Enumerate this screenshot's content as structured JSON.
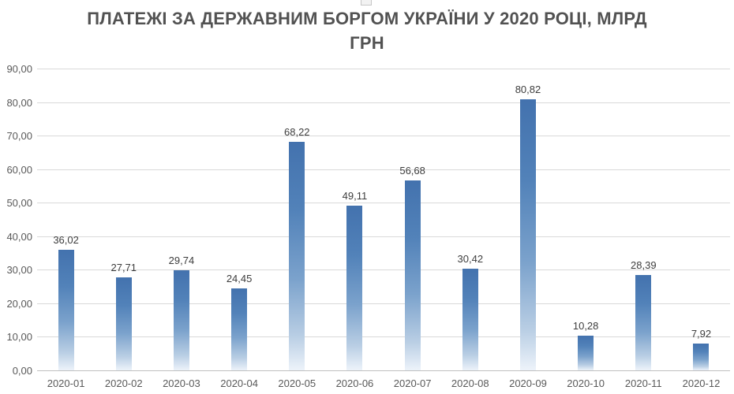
{
  "chart_data": {
    "type": "bar",
    "title": "ПЛАТЕЖІ ЗА ДЕРЖАВНИМ БОРГОМ УКРАЇНИ У 2020 РОЦІ, МЛРД ГРН",
    "title_line1": "ПЛАТЕЖІ ЗА ДЕРЖАВНИМ БОРГОМ УКРАЇНИ У 2020 РОЦІ, МЛРД",
    "title_line2": "ГРН",
    "xlabel": "",
    "ylabel": "",
    "categories": [
      "2020-01",
      "2020-02",
      "2020-03",
      "2020-04",
      "2020-05",
      "2020-06",
      "2020-07",
      "2020-08",
      "2020-09",
      "2020-10",
      "2020-11",
      "2020-12"
    ],
    "values": [
      36.02,
      27.71,
      29.74,
      24.45,
      68.22,
      49.11,
      56.68,
      30.42,
      80.82,
      10.28,
      28.39,
      7.92
    ],
    "value_labels": [
      "36,02",
      "27,71",
      "29,74",
      "24,45",
      "68,22",
      "49,11",
      "56,68",
      "30,42",
      "80,82",
      "10,28",
      "28,39",
      "7,92"
    ],
    "ylim": [
      0,
      90
    ],
    "ytick_step": 10,
    "ytick_labels": [
      "0,00",
      "10,00",
      "20,00",
      "30,00",
      "40,00",
      "50,00",
      "60,00",
      "70,00",
      "80,00",
      "90,00"
    ],
    "grid": true,
    "legend": "none",
    "colors": {
      "bar_gradient_top": "#4372AE",
      "bar_gradient_bottom": "#EDF3FA",
      "gridline": "#D9D9D9",
      "axis_line": "#BFBFBF",
      "title_text": "#525252",
      "value_label_text": "#3D3D3D",
      "tick_label_text": "#595959"
    }
  }
}
